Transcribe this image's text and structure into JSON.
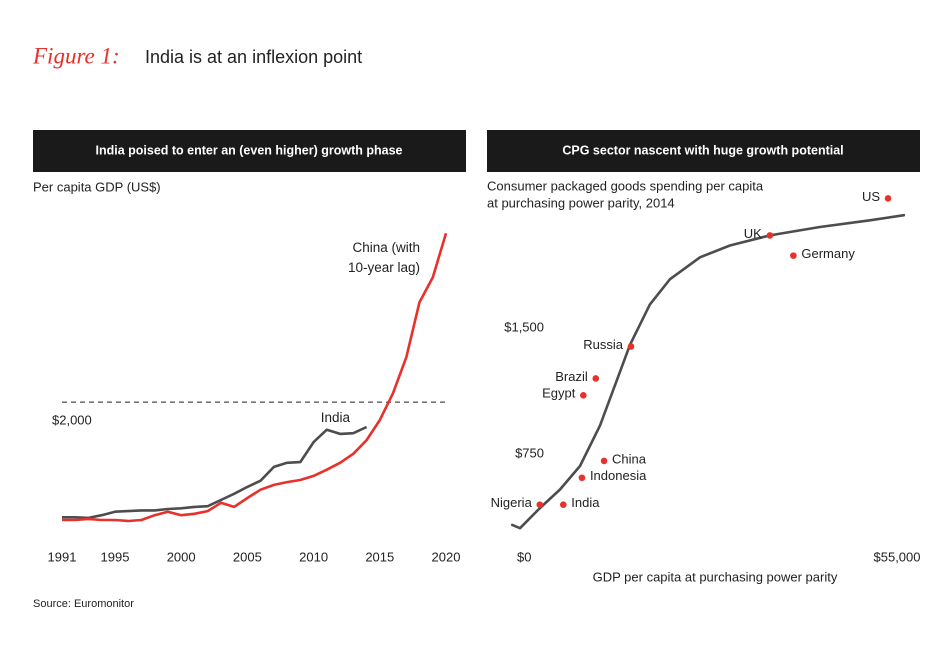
{
  "title_prefix": "Figure 1:",
  "title": "India is at an inflexion point",
  "source": "Source: Euromonitor",
  "chart_data": [
    {
      "type": "line",
      "title": "India poised to enter an (even higher) growth phase",
      "ylabel": "Per capita GDP (US$)",
      "x": [
        1991,
        1992,
        1993,
        1994,
        1995,
        1996,
        1997,
        1998,
        1999,
        2000,
        2001,
        2002,
        2003,
        2004,
        2005,
        2006,
        2007,
        2008,
        2009,
        2010,
        2011,
        2012,
        2013,
        2014,
        2015,
        2016,
        2017,
        2018,
        2019,
        2020
      ],
      "series": [
        {
          "name": "India",
          "color": "#4d4d4d",
          "values": [
            330,
            330,
            320,
            360,
            410,
            420,
            430,
            430,
            450,
            460,
            480,
            490,
            580,
            670,
            770,
            860,
            1060,
            1120,
            1130,
            1420,
            1600,
            1540,
            1550,
            1640,
            null,
            null,
            null,
            null,
            null,
            null
          ]
        },
        {
          "name": "China (with 10-year lag)",
          "color": "#e8312a",
          "values": [
            290,
            290,
            305,
            290,
            290,
            275,
            290,
            360,
            410,
            360,
            380,
            420,
            540,
            480,
            610,
            730,
            800,
            840,
            870,
            930,
            1020,
            1120,
            1250,
            1450,
            1740,
            2130,
            2650,
            3450,
            3810,
            4450
          ]
        }
      ],
      "xlim": [
        1991,
        2020
      ],
      "xticks": [
        1991,
        1995,
        2000,
        2005,
        2010,
        2015,
        2020
      ],
      "ylim": [
        0,
        4570
      ],
      "yticks": [
        {
          "value": 2000,
          "label": "$2,000"
        }
      ],
      "grid": true
    },
    {
      "type": "scatter",
      "title": "CPG sector nascent with huge growth potential",
      "ylabel": [
        "Consumer packaged goods spending per capita",
        "at purchasing power parity, 2014"
      ],
      "xlabel": "GDP per capita at purchasing power parity",
      "labels": [
        "US",
        "UK",
        "Germany",
        "Russia",
        "Brazil",
        "Egypt",
        "China",
        "Indonesia",
        "Nigeria",
        "India"
      ],
      "x": [
        53700,
        36600,
        40000,
        16500,
        11400,
        9600,
        12600,
        9400,
        3300,
        6700
      ],
      "y": [
        2270,
        2050,
        1930,
        1390,
        1200,
        1100,
        710,
        610,
        450,
        450
      ],
      "color": "#e8312a",
      "trend": {
        "color": "#4d4d4d",
        "x": [
          -700,
          430,
          3330,
          6220,
          9120,
          12010,
          14180,
          16350,
          19240,
          22140,
          26480,
          30820,
          36600,
          43840,
          51080,
          56000
        ],
        "y": [
          330,
          310,
          430,
          540,
          680,
          920,
          1160,
          1400,
          1640,
          1790,
          1920,
          1990,
          2050,
          2100,
          2140,
          2170
        ]
      },
      "xlim": [
        0,
        55000
      ],
      "xticks": [
        {
          "value": 0,
          "label": "$0"
        },
        {
          "value": 55000,
          "label": "$55,000"
        }
      ],
      "ylim": [
        240,
        2320
      ],
      "yticks": [
        {
          "value": 750,
          "label": "$750"
        },
        {
          "value": 1500,
          "label": "$1,500"
        }
      ]
    }
  ]
}
